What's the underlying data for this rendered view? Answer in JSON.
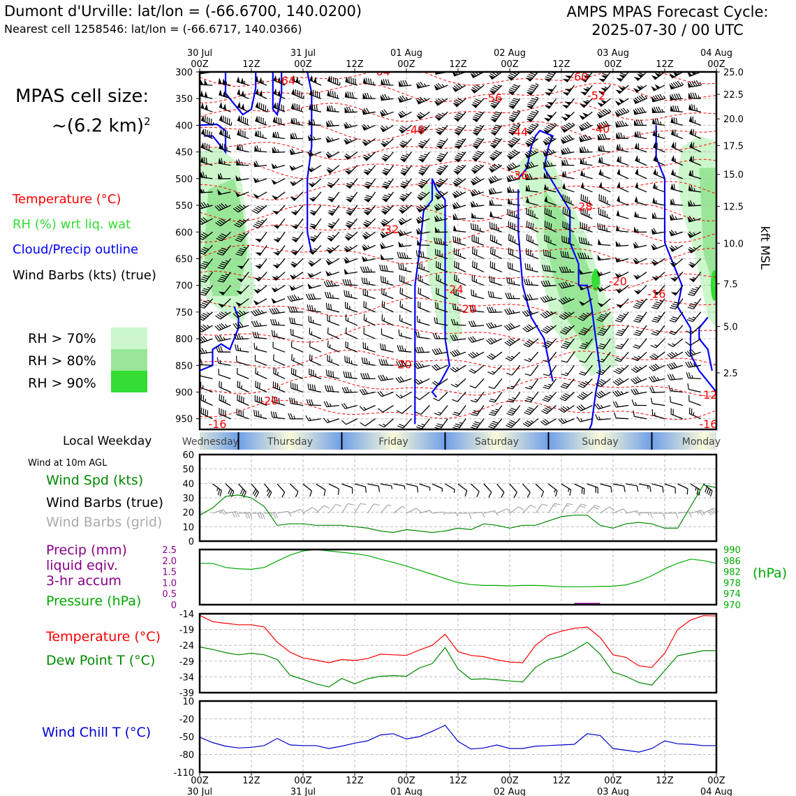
{
  "header": {
    "title_left": "Dumont d'Urville: lat/lon = (-66.6700, 140.0200)",
    "subtitle_left": "Nearest cell 1258546: lat/lon = (-66.6717, 140.0366)",
    "title_right_line1": "AMPS MPAS Forecast Cycle:",
    "title_right_line2": "2025-07-30 / 00 UTC",
    "cell_size_line1": "MPAS cell size:",
    "cell_size_line2": "~(6.2 km)",
    "cell_size_exp": "2"
  },
  "legend": {
    "temperature": "Temperature (°C)",
    "rh": "RH (%) wrt liq. wat",
    "cloud": "Cloud/Precip outline",
    "barbs": "Wind Barbs (kts) (true)",
    "rh70": "RH > 70%",
    "rh80": "RH > 80%",
    "rh90": "RH > 90%",
    "colors": {
      "temperature": "#ff0000",
      "rh": "#33dd33",
      "cloud": "#0000ff",
      "rh70": "#ccf7cc",
      "rh80": "#99e699",
      "rh90": "#33dd33"
    }
  },
  "weekday": {
    "label": "Local Weekday",
    "days": [
      "Wednesday",
      "Thursday",
      "Friday",
      "Saturday",
      "Sunday",
      "Monday"
    ]
  },
  "time_axis": {
    "top_ticks": [
      [
        "30 Jul",
        "00Z"
      ],
      [
        "",
        "12Z"
      ],
      [
        "31 Jul",
        "00Z"
      ],
      [
        "",
        "12Z"
      ],
      [
        "01 Aug",
        "00Z"
      ],
      [
        "",
        "12Z"
      ],
      [
        "02 Aug",
        "00Z"
      ],
      [
        "",
        "12Z"
      ],
      [
        "03 Aug",
        "00Z"
      ],
      [
        "",
        "12Z"
      ],
      [
        "04 Aug",
        "00Z"
      ]
    ],
    "bottom_ticks": [
      [
        "00Z",
        "30 Jul"
      ],
      [
        "12Z",
        ""
      ],
      [
        "00Z",
        "31 Jul"
      ],
      [
        "12Z",
        ""
      ],
      [
        "00Z",
        "01 Aug"
      ],
      [
        "12Z",
        ""
      ],
      [
        "00Z",
        "02 Aug"
      ],
      [
        "12Z",
        ""
      ],
      [
        "00Z",
        "03 Aug"
      ],
      [
        "12Z",
        ""
      ],
      [
        "00Z",
        "04 Aug"
      ]
    ]
  },
  "chart_data": [
    {
      "type": "heatmap",
      "name": "cross-section",
      "y_left_label": "",
      "y_right_label": "kft MSL",
      "pressure_ticks": [
        300,
        350,
        400,
        450,
        500,
        550,
        600,
        650,
        700,
        750,
        800,
        850,
        900,
        950
      ],
      "kft_ticks": [
        [
          "25.0",
          300
        ],
        [
          "22.5",
          342
        ],
        [
          "20.0",
          388
        ],
        [
          "17.5",
          438
        ],
        [
          "15.0",
          492
        ],
        [
          "12.5",
          552
        ],
        [
          "10.0",
          621
        ],
        [
          "7.5",
          697
        ],
        [
          "5.0",
          777
        ],
        [
          "2.5",
          864
        ]
      ],
      "ylim": [
        300,
        970
      ],
      "xlim_hours": [
        0,
        120
      ],
      "temperature_contour_labels": [
        {
          "text": "-64",
          "h": 18,
          "p": 317
        },
        {
          "text": "-64",
          "h": 40,
          "p": 300
        },
        {
          "text": "-60",
          "h": 86,
          "p": 310
        },
        {
          "text": "-56",
          "h": 66,
          "p": 350
        },
        {
          "text": "-52",
          "h": 90,
          "p": 345
        },
        {
          "text": "-48",
          "h": 48,
          "p": 409
        },
        {
          "text": "-44",
          "h": 72,
          "p": 413
        },
        {
          "text": "-40",
          "h": 91,
          "p": 407
        },
        {
          "text": "-36",
          "h": 72,
          "p": 494
        },
        {
          "text": "-32",
          "h": 42,
          "p": 596
        },
        {
          "text": "-28",
          "h": 87,
          "p": 553
        },
        {
          "text": "-24",
          "h": 57,
          "p": 708
        },
        {
          "text": "-20",
          "h": 95,
          "p": 693
        },
        {
          "text": "-20",
          "h": 60,
          "p": 745
        },
        {
          "text": "-16",
          "h": 104,
          "p": 717
        },
        {
          "text": "-20",
          "h": 45,
          "p": 849
        },
        {
          "text": "-20",
          "h": 14,
          "p": 917
        },
        {
          "text": "-12",
          "h": 116,
          "p": 906
        },
        {
          "text": "-16",
          "h": 2,
          "p": 961
        },
        {
          "text": "-16",
          "h": 116,
          "p": 961
        }
      ]
    },
    {
      "type": "line",
      "name": "surface-wind",
      "title": "Wind at 10m AGL",
      "series_labels": [
        "Wind Spd (kts)",
        "Wind Barbs (true)",
        "Wind Barbs (grid)"
      ],
      "ylim": [
        0,
        60
      ],
      "yticks": [
        0,
        10,
        20,
        30,
        40,
        50,
        60
      ],
      "x_hours": [
        0,
        3,
        6,
        9,
        12,
        15,
        18,
        21,
        24,
        27,
        30,
        33,
        36,
        39,
        42,
        45,
        48,
        51,
        54,
        57,
        60,
        63,
        66,
        69,
        72,
        75,
        78,
        81,
        84,
        87,
        90,
        93,
        96,
        99,
        102,
        105,
        108,
        111,
        114,
        117,
        120
      ],
      "wind_speed": [
        18,
        23,
        31,
        32,
        30,
        24,
        11,
        12,
        12,
        11,
        11,
        11,
        10,
        9,
        7,
        6,
        8,
        7,
        6,
        7,
        9,
        8,
        12,
        11,
        9,
        11,
        11,
        14,
        17,
        18,
        18,
        11,
        9,
        12,
        13,
        12,
        9,
        9,
        24,
        39,
        37
      ]
    },
    {
      "type": "line",
      "name": "pressure-precip",
      "series_labels": [
        "Precip (mm)",
        "liquid eqiv.",
        "3-hr accum",
        "Pressure (hPa)"
      ],
      "right_axis_label": "(hPa)",
      "precip_ylim": [
        0,
        2.5
      ],
      "precip_ticks": [
        "0",
        "0.5",
        "1.0",
        "1.5",
        "2.0",
        "2.5"
      ],
      "pressure_ylim": [
        970,
        990
      ],
      "pressure_ticks": [
        970,
        974,
        978,
        982,
        986,
        990
      ],
      "precip_bars": [
        {
          "h_start": 87,
          "h_end": 93,
          "mm": 0.08
        }
      ],
      "x_hours": [
        0,
        3,
        6,
        9,
        12,
        15,
        18,
        21,
        24,
        27,
        30,
        33,
        36,
        39,
        42,
        45,
        48,
        51,
        54,
        57,
        60,
        63,
        66,
        69,
        72,
        75,
        78,
        81,
        84,
        87,
        90,
        93,
        96,
        99,
        102,
        105,
        108,
        111,
        114,
        117,
        120
      ],
      "pressure": [
        985.0,
        985.0,
        983.5,
        983.0,
        982.8,
        983.5,
        985.8,
        988.0,
        989.5,
        990.0,
        989.5,
        989.0,
        988.5,
        987.8,
        986.5,
        985.3,
        984.0,
        982.5,
        981.0,
        979.5,
        978.0,
        977.3,
        977.0,
        977.0,
        976.8,
        977.0,
        977.0,
        976.8,
        976.5,
        976.5,
        976.5,
        976.6,
        976.7,
        977.2,
        978.5,
        980.5,
        983.0,
        985.0,
        986.5,
        986.0,
        985.0
      ]
    },
    {
      "type": "line",
      "name": "temperature-dewpoint",
      "series_labels": [
        "Temperature (°C)",
        "Dew Point T (°C)"
      ],
      "ylim": [
        -39,
        -14
      ],
      "yticks": [
        -39,
        -34,
        -29,
        -24,
        -19,
        -14
      ],
      "x_hours": [
        0,
        3,
        6,
        9,
        12,
        15,
        18,
        21,
        24,
        27,
        30,
        33,
        36,
        39,
        42,
        45,
        48,
        51,
        54,
        57,
        60,
        63,
        66,
        69,
        72,
        75,
        78,
        81,
        84,
        87,
        90,
        93,
        96,
        99,
        102,
        105,
        108,
        111,
        114,
        117,
        120
      ],
      "temperature": [
        -14.5,
        -16.5,
        -17.0,
        -17.5,
        -17.5,
        -18.2,
        -23.0,
        -26.2,
        -28.0,
        -28.7,
        -29.5,
        -28.5,
        -28.8,
        -28.2,
        -26.8,
        -27.0,
        -27.2,
        -25.5,
        -24.0,
        -20.5,
        -26.0,
        -27.2,
        -27.6,
        -28.6,
        -29.3,
        -29.5,
        -24.0,
        -20.8,
        -19.5,
        -18.6,
        -18.2,
        -21.5,
        -27.0,
        -27.8,
        -30.5,
        -31.0,
        -26.5,
        -19.0,
        -16.0,
        -14.6,
        -14.7
      ],
      "dew_point": [
        -24.5,
        -25.3,
        -26.3,
        -27.0,
        -26.5,
        -27.0,
        -28.5,
        -33.5,
        -34.8,
        -36.2,
        -37.2,
        -34.5,
        -36.2,
        -34.6,
        -33.8,
        -33.6,
        -33.8,
        -31.2,
        -29.8,
        -24.7,
        -31.5,
        -34.8,
        -34.6,
        -34.9,
        -35.3,
        -35.6,
        -31.0,
        -28.5,
        -27.5,
        -25.5,
        -23.0,
        -26.8,
        -32.5,
        -33.8,
        -35.8,
        -36.6,
        -32.0,
        -27.3,
        -26.5,
        -25.7,
        -25.7
      ]
    },
    {
      "type": "line",
      "name": "wind-chill",
      "series_labels": [
        "Wind Chill T (°C)"
      ],
      "ylim": [
        -110,
        10
      ],
      "yticks": [
        -110,
        -80,
        -50,
        -20,
        10
      ],
      "x_hours": [
        0,
        3,
        6,
        9,
        12,
        15,
        18,
        21,
        24,
        27,
        30,
        33,
        36,
        39,
        42,
        45,
        48,
        51,
        54,
        57,
        60,
        63,
        66,
        69,
        72,
        75,
        78,
        81,
        84,
        87,
        90,
        93,
        96,
        99,
        102,
        105,
        108,
        111,
        114,
        117,
        120
      ],
      "wind_chill": [
        -51,
        -60,
        -66,
        -69,
        -68,
        -65,
        -53,
        -64,
        -65,
        -65,
        -70,
        -66,
        -61,
        -57,
        -47,
        -45,
        -54,
        -50,
        -41,
        -31,
        -58,
        -71,
        -69,
        -64,
        -70,
        -70,
        -66,
        -65,
        -64,
        -63,
        -45,
        -48,
        -70,
        -73,
        -76,
        -70,
        -57,
        -62,
        -63,
        -65,
        -65
      ]
    }
  ]
}
